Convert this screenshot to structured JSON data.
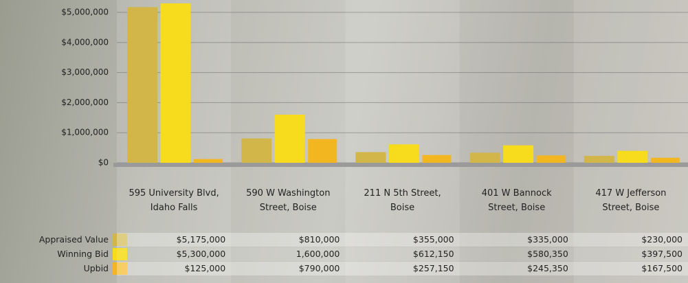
{
  "chart_data": {
    "type": "bar",
    "categories": [
      "595 University Blvd, Idaho Falls",
      "590 W Washington Street, Boise",
      "211 N 5th Street, Boise",
      "401 W Bannock Street, Boise",
      "417 W Jefferson Street, Boise"
    ],
    "series": [
      {
        "name": "Appraised Value",
        "color": "#d2b64a",
        "values": [
          5175000,
          810000,
          355000,
          335000,
          230000
        ],
        "value_labels": [
          "$5,175,000",
          "$810,000",
          "$355,000",
          "$335,000",
          "$230,000"
        ]
      },
      {
        "name": "Winning Bid",
        "color": "#f6dc1c",
        "values": [
          5300000,
          1600000,
          612150,
          580350,
          397500
        ],
        "value_labels": [
          "$5,300,000",
          "1,600,000",
          "$612,150",
          "$580,350",
          "$397,500"
        ]
      },
      {
        "name": "Upbid",
        "color": "#f2b620",
        "values": [
          125000,
          790000,
          257150,
          245350,
          167500
        ],
        "value_labels": [
          "$125,000",
          "$790,000",
          "$257,150",
          "$245,350",
          "$167,500"
        ]
      }
    ],
    "ylim": [
      0,
      5400000
    ],
    "yticks": [
      {
        "value": 0,
        "label": "$0"
      },
      {
        "value": 1000000,
        "label": "$1,000,000"
      },
      {
        "value": 2000000,
        "label": "$2,000,000"
      },
      {
        "value": 3000000,
        "label": "$3,000,000"
      },
      {
        "value": 4000000,
        "label": "$4,000,000"
      },
      {
        "value": 5000000,
        "label": "$5,000,000"
      }
    ],
    "grid": true
  }
}
